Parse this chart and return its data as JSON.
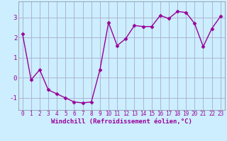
{
  "x": [
    0,
    1,
    2,
    3,
    4,
    5,
    6,
    7,
    8,
    9,
    10,
    11,
    12,
    13,
    14,
    15,
    16,
    17,
    18,
    19,
    20,
    21,
    22,
    23
  ],
  "y": [
    2.2,
    -0.1,
    0.4,
    -0.6,
    -0.8,
    -1.0,
    -1.2,
    -1.25,
    -1.2,
    0.4,
    2.75,
    1.6,
    1.95,
    2.6,
    2.55,
    2.55,
    3.1,
    2.95,
    3.3,
    3.25,
    2.7,
    1.55,
    2.45,
    3.05
  ],
  "line_color": "#990099",
  "marker": "D",
  "markersize": 2.5,
  "linewidth": 1.0,
  "bg_color": "#cceeff",
  "grid_color": "#aaaacc",
  "xlabel": "Windchill (Refroidissement éolien,°C)",
  "xlabel_fontsize": 6.5,
  "xlabel_color": "#990099",
  "tick_color": "#990099",
  "tick_fontsize": 5.5,
  "ylim": [
    -1.6,
    3.8
  ],
  "xlim": [
    -0.5,
    23.5
  ],
  "yticks": [
    -1,
    0,
    1,
    2,
    3
  ],
  "xticks": [
    0,
    1,
    2,
    3,
    4,
    5,
    6,
    7,
    8,
    9,
    10,
    11,
    12,
    13,
    14,
    15,
    16,
    17,
    18,
    19,
    20,
    21,
    22,
    23
  ]
}
